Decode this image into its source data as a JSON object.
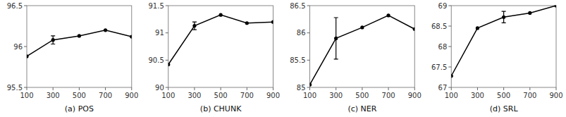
{
  "chart_data": [
    {
      "type": "line",
      "xlabel": "(a) POS",
      "x": [
        100,
        300,
        500,
        700,
        900
      ],
      "values": [
        95.88,
        96.08,
        96.13,
        96.2,
        96.12
      ],
      "errors": [
        null,
        0.05,
        null,
        null,
        null
      ],
      "xlim": [
        100,
        900
      ],
      "xticks": [
        100,
        300,
        500,
        700,
        900
      ],
      "ylim": [
        95.5,
        96.5
      ],
      "yticks": [
        95.5,
        96,
        96.5
      ],
      "color": "black",
      "marker": "circle"
    },
    {
      "type": "line",
      "xlabel": "(b) CHUNK",
      "x": [
        100,
        300,
        500,
        700,
        900
      ],
      "values": [
        90.42,
        91.13,
        91.33,
        91.18,
        91.2
      ],
      "errors": [
        null,
        0.07,
        null,
        null,
        null
      ],
      "xlim": [
        100,
        900
      ],
      "xticks": [
        100,
        300,
        500,
        700,
        900
      ],
      "ylim": [
        90,
        91.5
      ],
      "yticks": [
        90,
        90.5,
        91,
        91.5
      ],
      "color": "black",
      "marker": "circle"
    },
    {
      "type": "line",
      "xlabel": "(c) NER",
      "x": [
        100,
        300,
        500,
        700,
        900
      ],
      "values": [
        85.05,
        85.9,
        86.1,
        86.32,
        86.07
      ],
      "errors": [
        null,
        0.38,
        null,
        null,
        null
      ],
      "xlim": [
        100,
        900
      ],
      "xticks": [
        100,
        300,
        500,
        700,
        900
      ],
      "ylim": [
        85,
        86.5
      ],
      "yticks": [
        85,
        85.5,
        86,
        86.5
      ],
      "color": "black",
      "marker": "circle"
    },
    {
      "type": "line",
      "xlabel": "(d) SRL",
      "x": [
        100,
        300,
        500,
        700,
        900
      ],
      "values": [
        67.28,
        68.45,
        68.72,
        68.82,
        69.0
      ],
      "errors": [
        null,
        null,
        0.14,
        null,
        null
      ],
      "xlim": [
        100,
        900
      ],
      "xticks": [
        100,
        300,
        500,
        700,
        900
      ],
      "ylim": [
        67,
        69
      ],
      "yticks": [
        67,
        67.5,
        68,
        68.5,
        69
      ],
      "color": "black",
      "marker": "circle"
    }
  ]
}
